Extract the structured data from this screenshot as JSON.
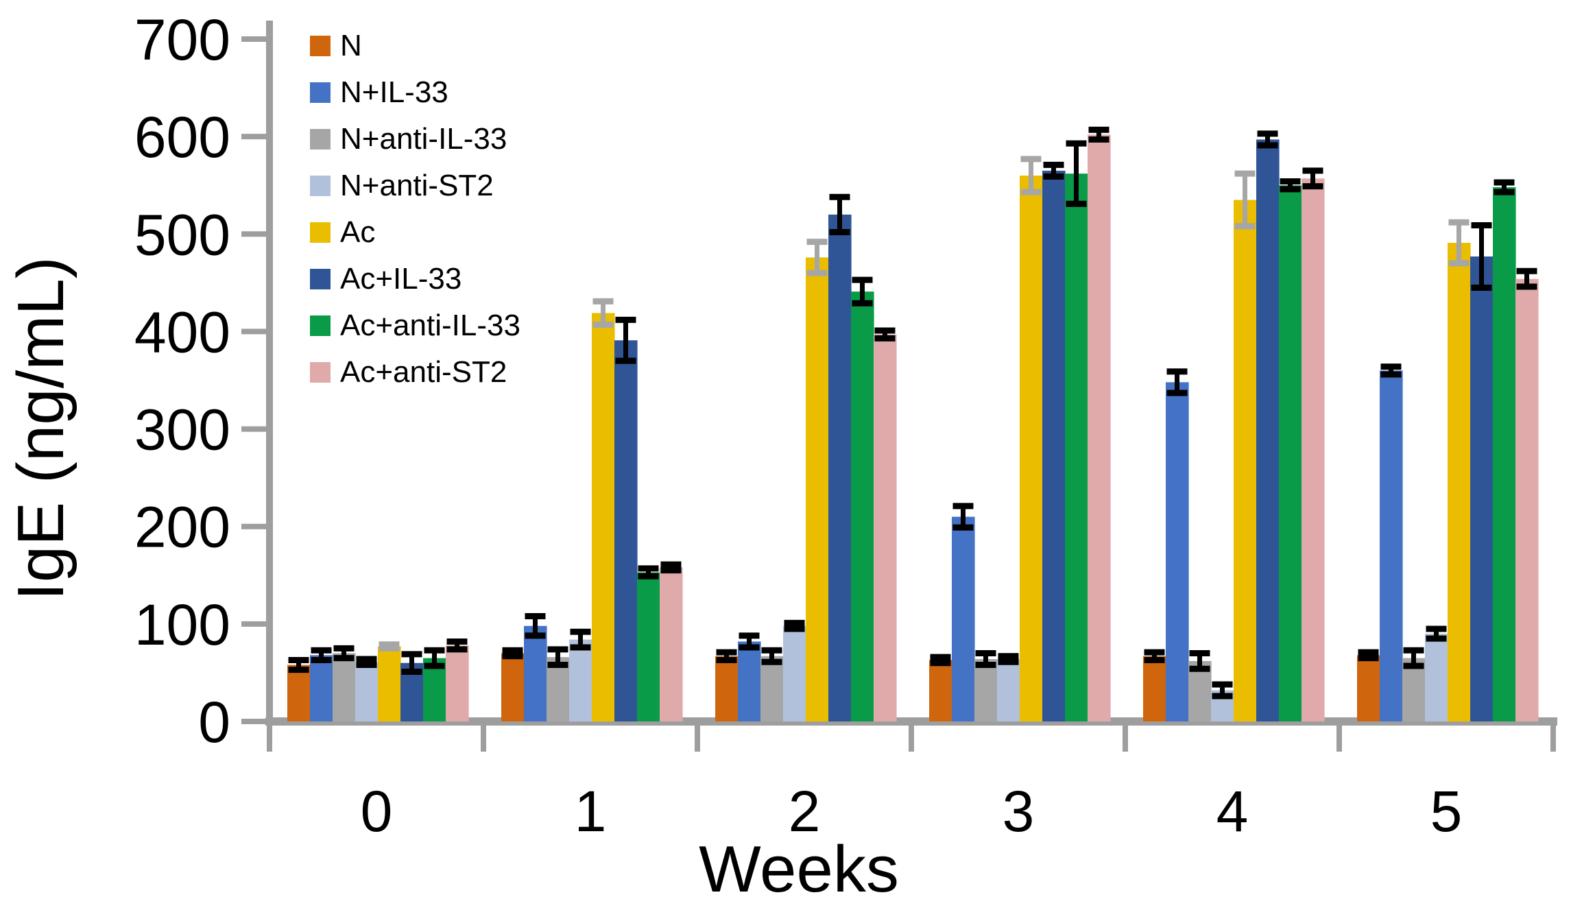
{
  "chart_data": {
    "type": "bar",
    "title": "",
    "xlabel": "Weeks",
    "ylabel": "IgE (ng/mL)",
    "categories": [
      "0",
      "1",
      "2",
      "3",
      "4",
      "5"
    ],
    "ylim": [
      0,
      700
    ],
    "ytick_step": 100,
    "ytick_labels": [
      "0",
      "100",
      "200",
      "300",
      "400",
      "500",
      "600",
      "700"
    ],
    "grid": false,
    "legend_position": "inside-top-left",
    "axis_color": "#9E9E9E",
    "text_color": "#000000",
    "error_bars": true,
    "series": [
      {
        "name": "N",
        "color": "#CF660E",
        "error_color": "#000000",
        "values": [
          58,
          70,
          67,
          63,
          67,
          68
        ],
        "errors": [
          5,
          3,
          4,
          3,
          4,
          3
        ]
      },
      {
        "name": "N+IL-33",
        "color": "#4472C4",
        "error_color": "#000000",
        "values": [
          68,
          98,
          82,
          210,
          348,
          360
        ],
        "errors": [
          5,
          10,
          6,
          11,
          11,
          4
        ]
      },
      {
        "name": "N+anti-IL-33",
        "color": "#A6A6A6",
        "error_color": "#000000",
        "values": [
          70,
          66,
          67,
          64,
          62,
          65
        ],
        "errors": [
          5,
          8,
          6,
          6,
          8,
          8
        ]
      },
      {
        "name": "N+anti-ST2",
        "color": "#B1C1DC",
        "error_color": "#000000",
        "values": [
          61,
          84,
          98,
          64,
          32,
          90
        ],
        "errors": [
          3,
          8,
          3,
          3,
          6,
          5
        ]
      },
      {
        "name": "Ac",
        "color": "#EABD00",
        "error_color": "#A6A6A6",
        "values": [
          77,
          419,
          476,
          560,
          535,
          491
        ],
        "errors": [
          2,
          12,
          16,
          17,
          27,
          21
        ]
      },
      {
        "name": "Ac+IL-33",
        "color": "#2F5597",
        "error_color": "#000000",
        "values": [
          60,
          391,
          520,
          565,
          597,
          477
        ],
        "errors": [
          9,
          21,
          18,
          6,
          6,
          32
        ]
      },
      {
        "name": "Ac+anti-IL-33",
        "color": "#0A9B48",
        "error_color": "#000000",
        "values": [
          65,
          153,
          441,
          562,
          550,
          548
        ],
        "errors": [
          8,
          4,
          12,
          31,
          4,
          5
        ]
      },
      {
        "name": "Ac+anti-ST2",
        "color": "#E0AAAA",
        "error_color": "#000000",
        "values": [
          78,
          158,
          397,
          602,
          557,
          454
        ],
        "errors": [
          4,
          3,
          4,
          5,
          8,
          8
        ]
      }
    ]
  }
}
